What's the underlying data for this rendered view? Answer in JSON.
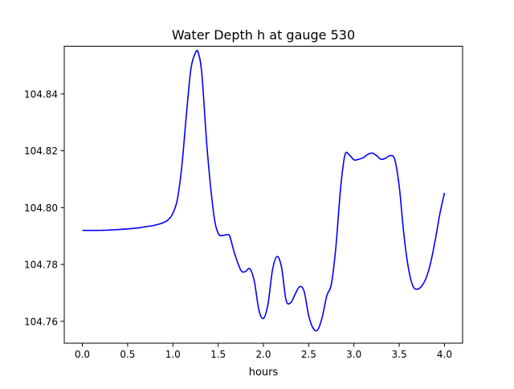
{
  "chart_data": {
    "type": "line",
    "title": "Water Depth h at gauge 530",
    "xlabel": "hours",
    "ylabel": "",
    "xlim": [
      -0.2,
      4.2
    ],
    "ylim": [
      104.7523,
      104.8568
    ],
    "xticks": [
      {
        "value": 0.0,
        "label": "0.0"
      },
      {
        "value": 0.5,
        "label": "0.5"
      },
      {
        "value": 1.0,
        "label": "1.0"
      },
      {
        "value": 1.5,
        "label": "1.5"
      },
      {
        "value": 2.0,
        "label": "2.0"
      },
      {
        "value": 2.5,
        "label": "2.5"
      },
      {
        "value": 3.0,
        "label": "3.0"
      },
      {
        "value": 3.5,
        "label": "3.5"
      },
      {
        "value": 4.0,
        "label": "4.0"
      }
    ],
    "yticks": [
      {
        "value": 104.76,
        "label": "104.76"
      },
      {
        "value": 104.78,
        "label": "104.78"
      },
      {
        "value": 104.8,
        "label": "104.80"
      },
      {
        "value": 104.82,
        "label": "104.82"
      },
      {
        "value": 104.84,
        "label": "104.84"
      }
    ],
    "grid": false,
    "line_color": "#0000ff",
    "series": [
      {
        "x": [
          0.0,
          0.2,
          0.4,
          0.6,
          0.7,
          0.8,
          0.9,
          0.95,
          1.0,
          1.05,
          1.1,
          1.15,
          1.2,
          1.25,
          1.28,
          1.32,
          1.38,
          1.45,
          1.5,
          1.55,
          1.6,
          1.63,
          1.68,
          1.75,
          1.8,
          1.85,
          1.9,
          1.95,
          2.0,
          2.05,
          2.1,
          2.15,
          2.2,
          2.25,
          2.3,
          2.35,
          2.4,
          2.45,
          2.5,
          2.55,
          2.6,
          2.65,
          2.7,
          2.75,
          2.8,
          2.85,
          2.9,
          2.95,
          3.0,
          3.05,
          3.1,
          3.15,
          3.2,
          3.25,
          3.3,
          3.35,
          3.4,
          3.45,
          3.5,
          3.55,
          3.6,
          3.65,
          3.7,
          3.75,
          3.8,
          3.85,
          3.9,
          3.95,
          4.0
        ],
        "y": [
          104.792,
          104.792,
          104.7923,
          104.7928,
          104.7933,
          104.7938,
          104.7948,
          104.7958,
          104.798,
          104.803,
          104.815,
          104.833,
          104.849,
          104.8545,
          104.8545,
          104.847,
          104.82,
          104.798,
          104.791,
          104.7902,
          104.7905,
          104.7898,
          104.784,
          104.778,
          104.7775,
          104.7785,
          104.774,
          104.764,
          104.761,
          104.766,
          104.778,
          104.7828,
          104.779,
          104.7675,
          104.7665,
          104.7695,
          104.7722,
          104.7705,
          104.762,
          104.7575,
          104.757,
          104.7615,
          104.769,
          104.773,
          104.786,
          104.806,
          104.8185,
          104.8185,
          104.8168,
          104.817,
          104.8175,
          104.8187,
          104.8192,
          104.8183,
          104.817,
          104.8174,
          104.8183,
          104.817,
          104.8075,
          104.791,
          104.779,
          104.7725,
          104.7713,
          104.7725,
          104.7755,
          104.781,
          104.789,
          104.798,
          104.8052
        ]
      }
    ]
  }
}
